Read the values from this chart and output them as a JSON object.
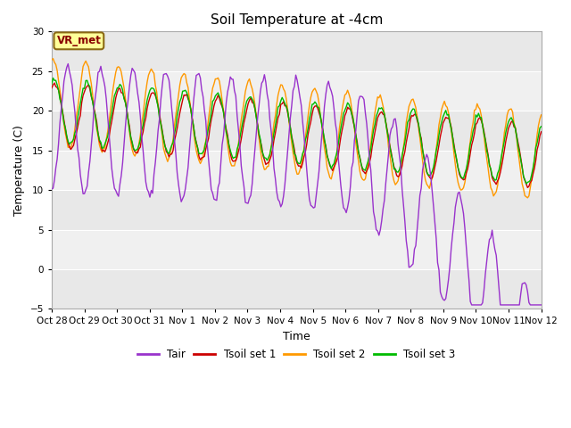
{
  "title": "Soil Temperature at -4cm",
  "xlabel": "Time",
  "ylabel": "Temperature (C)",
  "ylim": [
    -5,
    30
  ],
  "yticks": [
    -5,
    0,
    5,
    10,
    15,
    20,
    25,
    30
  ],
  "xtick_labels": [
    "Oct 28",
    "Oct 29",
    "Oct 30",
    "Oct 31",
    "Nov 1",
    "Nov 2",
    "Nov 3",
    "Nov 4",
    "Nov 5",
    "Nov 6",
    "Nov 7",
    "Nov 8",
    "Nov 9",
    "Nov 10",
    "Nov 11",
    "Nov 12"
  ],
  "colors": {
    "Tair": "#9933cc",
    "Tsoil1": "#cc0000",
    "Tsoil2": "#ff9900",
    "Tsoil3": "#00bb00"
  },
  "legend_label_box": "VR_met",
  "bg_color": "#ffffff",
  "plot_bg_light": "#e8e8e8",
  "plot_bg_dark": "#d0d0d0",
  "band_white": "#f5f5f5",
  "linewidth": 1.0
}
